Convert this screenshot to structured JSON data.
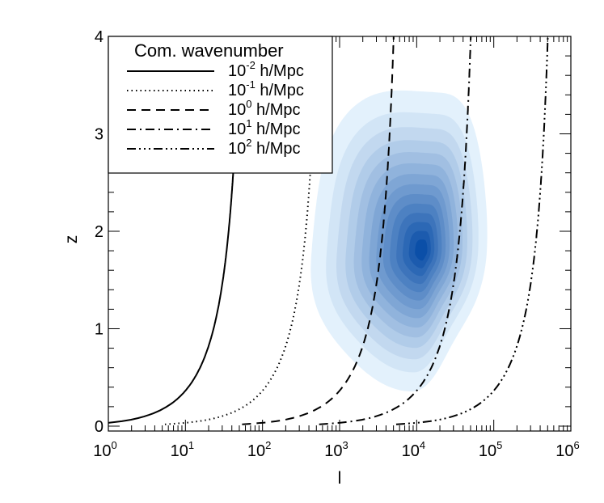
{
  "chart_data": {
    "type": "line",
    "xlabel": "l",
    "ylabel": "z",
    "xscale": "log",
    "xlim": [
      1,
      1000000
    ],
    "ylim": [
      -0.05,
      4
    ],
    "x_ticks": [
      {
        "base": "10",
        "exp": "0",
        "value": 1
      },
      {
        "base": "10",
        "exp": "1",
        "value": 10
      },
      {
        "base": "10",
        "exp": "2",
        "value": 100
      },
      {
        "base": "10",
        "exp": "3",
        "value": 1000
      },
      {
        "base": "10",
        "exp": "4",
        "value": 10000
      },
      {
        "base": "10",
        "exp": "5",
        "value": 100000
      },
      {
        "base": "10",
        "exp": "6",
        "value": 1000000
      }
    ],
    "y_ticks": [
      {
        "label": "0",
        "value": 0
      },
      {
        "label": "1",
        "value": 1
      },
      {
        "label": "2",
        "value": 2
      },
      {
        "label": "3",
        "value": 3
      },
      {
        "label": "4",
        "value": 4
      }
    ],
    "grid": false,
    "legend": {
      "placement": "top-left",
      "title": "Com. wavenumber",
      "entries": [
        {
          "base": "10",
          "exp": "-2",
          "unit": "h/Mpc",
          "k": 0.01,
          "style": "solid"
        },
        {
          "base": "10",
          "exp": "-1",
          "unit": "h/Mpc",
          "k": 0.1,
          "style": "dotted"
        },
        {
          "base": "10",
          "exp": "0",
          "unit": "h/Mpc",
          "k": 1,
          "style": "dashed"
        },
        {
          "base": "10",
          "exp": "1",
          "unit": "h/Mpc",
          "k": 10,
          "style": "dash-dot"
        },
        {
          "base": "10",
          "exp": "2",
          "unit": "h/Mpc",
          "k": 100,
          "style": "dash-dot-dot-dot"
        }
      ]
    },
    "density": {
      "peak_l": 12000,
      "peak_z": 1.8,
      "colormap": [
        "#e3f1fc",
        "#0b4fa8"
      ],
      "levels": 14
    }
  }
}
